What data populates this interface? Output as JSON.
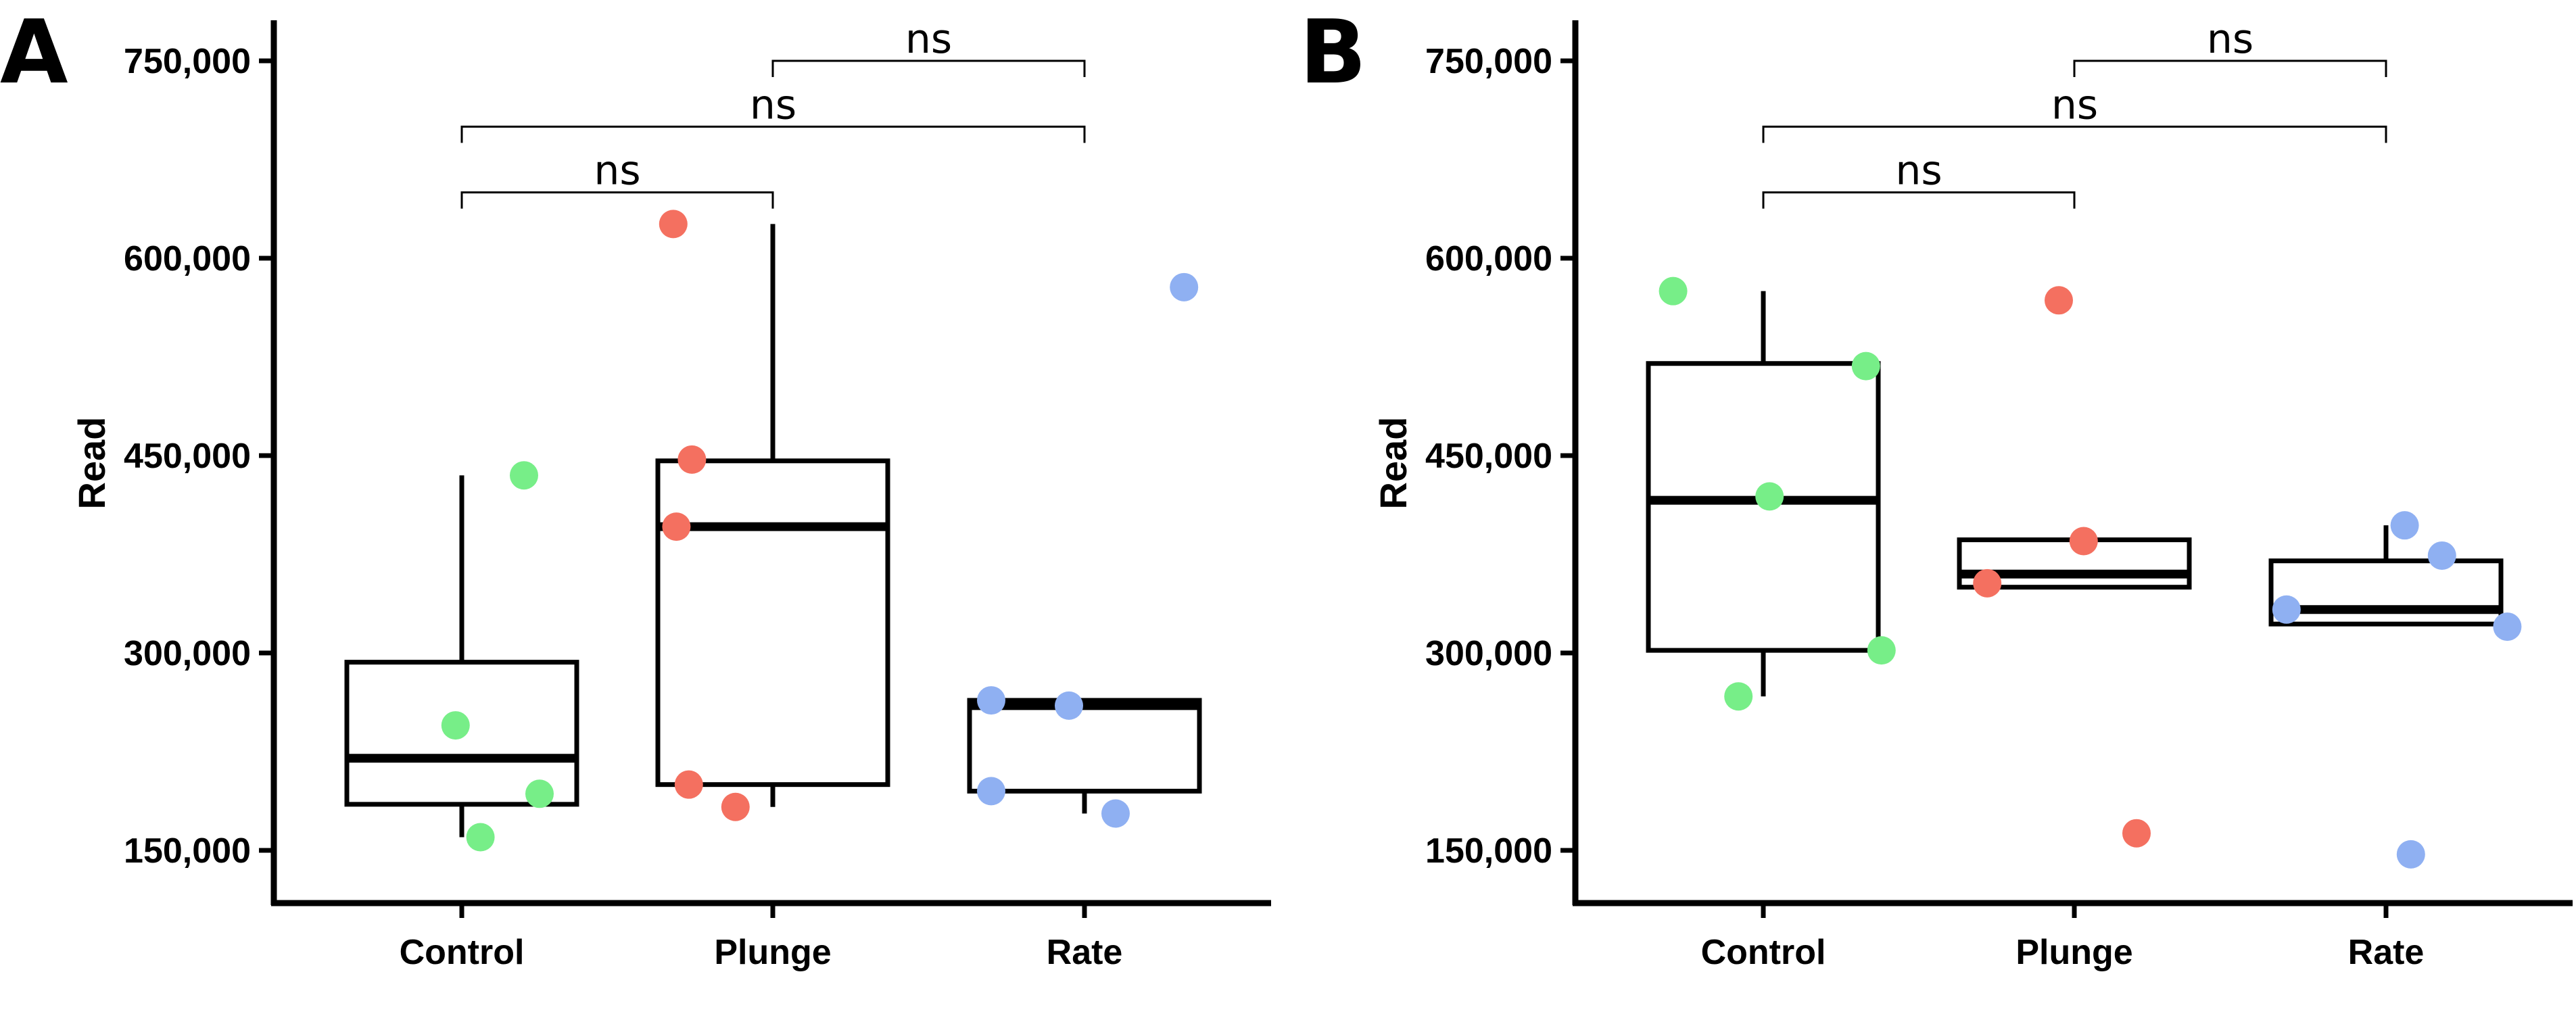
{
  "chart_data": [
    {
      "panel": "A",
      "type": "box",
      "ylabel": "Read",
      "categories": [
        "Control",
        "Plunge",
        "Rate"
      ],
      "ylim": [
        120000,
        800000
      ],
      "yticks": [
        150000,
        300000,
        450000,
        600000,
        750000
      ],
      "ytick_labels": [
        "150,000",
        "300,000",
        "450,000",
        "600,000",
        "750,000"
      ],
      "group_colors": [
        "#77ee88",
        "#f47060",
        "#8fb0f2"
      ],
      "boxes": [
        {
          "category": "Control",
          "q1": 185000,
          "median": 220000,
          "q3": 293000,
          "whisker_low": 160000,
          "whisker_high": 435000
        },
        {
          "category": "Plunge",
          "q1": 200000,
          "median": 396000,
          "q3": 446000,
          "whisker_low": 183000,
          "whisker_high": 626000
        },
        {
          "category": "Rate",
          "q1": 195000,
          "median": 260000,
          "q3": 264000,
          "whisker_low": 178000,
          "whisker_high": 264000
        }
      ],
      "points": [
        {
          "category": "Control",
          "jitter": -0.02,
          "value": 245000
        },
        {
          "category": "Control",
          "jitter": 0.2,
          "value": 435000
        },
        {
          "category": "Control",
          "jitter": 0.25,
          "value": 193000
        },
        {
          "category": "Control",
          "jitter": 0.06,
          "value": 160000
        },
        {
          "category": "Plunge",
          "jitter": -0.32,
          "value": 626000
        },
        {
          "category": "Plunge",
          "jitter": -0.26,
          "value": 447000
        },
        {
          "category": "Plunge",
          "jitter": -0.31,
          "value": 396000
        },
        {
          "category": "Plunge",
          "jitter": -0.27,
          "value": 200000
        },
        {
          "category": "Plunge",
          "jitter": -0.12,
          "value": 183000
        },
        {
          "category": "Rate",
          "jitter": -0.3,
          "value": 264000
        },
        {
          "category": "Rate",
          "jitter": -0.05,
          "value": 260000
        },
        {
          "category": "Rate",
          "jitter": -0.3,
          "value": 195000
        },
        {
          "category": "Rate",
          "jitter": 0.1,
          "value": 178000
        },
        {
          "category": "Rate",
          "jitter": 0.32,
          "value": 578000
        }
      ],
      "comparisons": [
        {
          "from": "Control",
          "to": "Plunge",
          "label": "ns",
          "y": 650000
        },
        {
          "from": "Control",
          "to": "Rate",
          "label": "ns",
          "y": 700000
        },
        {
          "from": "Plunge",
          "to": "Rate",
          "label": "ns",
          "y": 750000
        }
      ]
    },
    {
      "panel": "B",
      "type": "box",
      "ylabel": "Read",
      "categories": [
        "Control",
        "Plunge",
        "Rate"
      ],
      "ylim": [
        120000,
        800000
      ],
      "yticks": [
        150000,
        300000,
        450000,
        600000,
        750000
      ],
      "ytick_labels": [
        "150,000",
        "300,000",
        "450,000",
        "600,000",
        "750,000"
      ],
      "group_colors": [
        "#77ee88",
        "#f47060",
        "#8fb0f2"
      ],
      "boxes": [
        {
          "category": "Control",
          "q1": 302000,
          "median": 416000,
          "q3": 520000,
          "whisker_low": 267000,
          "whisker_high": 575000
        },
        {
          "category": "Plunge",
          "q1": 350000,
          "median": 360000,
          "q3": 386000,
          "whisker_low": 350000,
          "whisker_high": 386000
        },
        {
          "category": "Rate",
          "q1": 322000,
          "median": 333000,
          "q3": 370000,
          "whisker_low": 322000,
          "whisker_high": 397000
        }
      ],
      "points": [
        {
          "category": "Control",
          "jitter": -0.29,
          "value": 575000
        },
        {
          "category": "Control",
          "jitter": 0.33,
          "value": 518000
        },
        {
          "category": "Control",
          "jitter": 0.02,
          "value": 419000
        },
        {
          "category": "Control",
          "jitter": 0.38,
          "value": 302000
        },
        {
          "category": "Control",
          "jitter": -0.08,
          "value": 267000
        },
        {
          "category": "Plunge",
          "jitter": -0.05,
          "value": 568000
        },
        {
          "category": "Plunge",
          "jitter": 0.03,
          "value": 385000
        },
        {
          "category": "Plunge",
          "jitter": -0.28,
          "value": 353000
        },
        {
          "category": "Plunge",
          "jitter": 0.2,
          "value": 163000
        },
        {
          "category": "Rate",
          "jitter": 0.06,
          "value": 397000
        },
        {
          "category": "Rate",
          "jitter": 0.18,
          "value": 374000
        },
        {
          "category": "Rate",
          "jitter": -0.32,
          "value": 333000
        },
        {
          "category": "Rate",
          "jitter": 0.39,
          "value": 320000
        },
        {
          "category": "Rate",
          "jitter": 0.08,
          "value": 147000
        }
      ],
      "comparisons": [
        {
          "from": "Control",
          "to": "Plunge",
          "label": "ns",
          "y": 650000
        },
        {
          "from": "Control",
          "to": "Rate",
          "label": "ns",
          "y": 700000
        },
        {
          "from": "Plunge",
          "to": "Rate",
          "label": "ns",
          "y": 750000
        }
      ]
    }
  ]
}
